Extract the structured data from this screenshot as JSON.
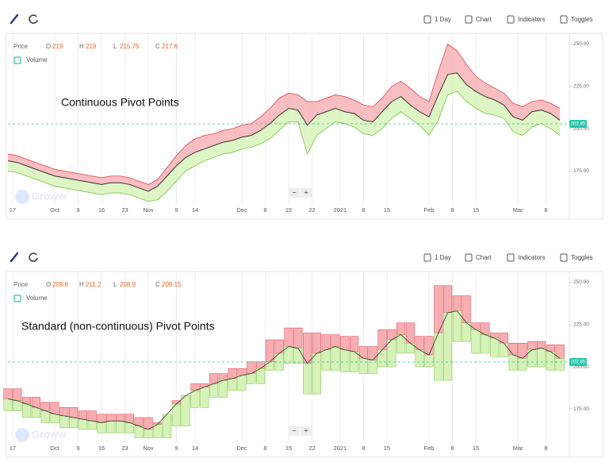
{
  "toolbars": [
    {
      "items": [
        "1 Day",
        "Chart",
        "Indicators",
        "Toggles"
      ],
      "zoom": [
        "−",
        "+"
      ]
    },
    {
      "items": [
        "1 Day",
        "Chart",
        "Indicators",
        "Toggles"
      ],
      "zoom": [
        "−",
        "+"
      ]
    }
  ],
  "chart_data": [
    {
      "type": "band",
      "title": "Continuous Pivot Points",
      "watermark": "Groww",
      "price_label": "Price",
      "volume_label": "Volume",
      "ohlc_labels": [
        "O",
        "H",
        "L",
        "C"
      ],
      "ohlc_values": [
        219,
        219,
        215.75,
        217.6
      ],
      "last_price": 202.85,
      "last_price_color": "#26c6a6",
      "xlim": [
        0,
        120
      ],
      "ylim": [
        155,
        254
      ],
      "grid": "x",
      "xticks": [
        {
          "value": 1,
          "label": "17"
        },
        {
          "value": 10,
          "label": "Oct"
        },
        {
          "value": 15,
          "label": "9"
        },
        {
          "value": 20,
          "label": "16"
        },
        {
          "value": 25,
          "label": "23"
        },
        {
          "value": 30,
          "label": "Nov"
        },
        {
          "value": 36,
          "label": "9"
        },
        {
          "value": 40,
          "label": "14"
        },
        {
          "value": 50,
          "label": "Dec"
        },
        {
          "value": 55,
          "label": "8"
        },
        {
          "value": 60,
          "label": "15"
        },
        {
          "value": 65,
          "label": "22"
        },
        {
          "value": 71,
          "label": "2021"
        },
        {
          "value": 76,
          "label": "8"
        },
        {
          "value": 81,
          "label": "15"
        },
        {
          "value": 90,
          "label": "Feb"
        },
        {
          "value": 95,
          "label": "8"
        },
        {
          "value": 100,
          "label": "15"
        },
        {
          "value": 109,
          "label": "Mar"
        },
        {
          "value": 115,
          "label": "8"
        }
      ],
      "yticks": [
        {
          "value": 175,
          "label": "175.00"
        },
        {
          "value": 200,
          "label": "200.00"
        },
        {
          "value": 225,
          "label": "225.00"
        },
        {
          "value": 250,
          "label": "250.00"
        }
      ],
      "x": [
        0,
        2,
        4,
        6,
        8,
        10,
        12,
        14,
        16,
        18,
        20,
        22,
        24,
        26,
        28,
        30,
        32,
        34,
        36,
        38,
        40,
        42,
        44,
        46,
        48,
        50,
        52,
        54,
        56,
        58,
        60,
        62,
        64,
        66,
        68,
        70,
        72,
        74,
        76,
        78,
        80,
        82,
        84,
        86,
        88,
        90,
        92,
        94,
        96,
        98,
        100,
        102,
        104,
        106,
        108,
        110,
        112,
        114,
        116,
        118
      ],
      "series": [
        {
          "color": "#e0404a",
          "fill": "#f6aeb2",
          "values": [
            185,
            184,
            182,
            180,
            178,
            176,
            175,
            174,
            173,
            172,
            171,
            172,
            172,
            171,
            169,
            167,
            170,
            177,
            184,
            190,
            194,
            196,
            197,
            199,
            200,
            202,
            203,
            207,
            212,
            218,
            221,
            220,
            216,
            216,
            218,
            220,
            219,
            217,
            214,
            213,
            218,
            225,
            228,
            224,
            219,
            216,
            234,
            250,
            246,
            238,
            231,
            227,
            224,
            221,
            215,
            213,
            216,
            217,
            215,
            212
          ]
        },
        {
          "color": "#333333",
          "values": [
            181,
            180,
            178,
            176,
            174,
            172,
            171,
            170,
            169,
            168,
            167,
            168,
            168,
            167,
            165,
            163,
            166,
            172,
            178,
            183,
            186,
            188,
            190,
            192,
            193,
            195,
            196,
            199,
            203,
            208,
            212,
            211,
            202,
            208,
            210,
            212,
            210,
            209,
            205,
            204,
            210,
            216,
            219,
            214,
            210,
            207,
            220,
            232,
            233,
            226,
            222,
            219,
            217,
            214,
            207,
            205,
            210,
            211,
            209,
            205
          ]
        },
        {
          "color": "#7cc243",
          "fill": "#d6f2b8",
          "values": [
            175,
            174,
            172,
            170,
            168,
            166,
            165,
            164,
            163,
            162,
            161,
            162,
            162,
            161,
            159,
            157,
            158,
            163,
            169,
            175,
            178,
            181,
            183,
            185,
            186,
            188,
            189,
            191,
            194,
            199,
            204,
            204,
            185,
            196,
            200,
            204,
            203,
            201,
            197,
            196,
            200,
            206,
            210,
            206,
            202,
            196,
            205,
            220,
            222,
            216,
            212,
            209,
            208,
            206,
            198,
            196,
            201,
            203,
            200,
            196
          ]
        }
      ]
    },
    {
      "type": "step_band",
      "title": "Standard (non-continuous) Pivot Points",
      "watermark": "Groww",
      "price_label": "Price",
      "volume_label": "Volume",
      "ohlc_labels": [
        "O",
        "H",
        "L",
        "C"
      ],
      "ohlc_values": [
        209.8,
        211.2,
        208.9,
        209.15
      ],
      "last_price": 202.85,
      "last_price_color": "#26c6a6",
      "xlim": [
        0,
        120
      ],
      "ylim": [
        155,
        254
      ],
      "grid": "x",
      "xticks": [
        {
          "value": 1,
          "label": "17"
        },
        {
          "value": 10,
          "label": "Oct"
        },
        {
          "value": 15,
          "label": "9"
        },
        {
          "value": 20,
          "label": "16"
        },
        {
          "value": 25,
          "label": "23"
        },
        {
          "value": 30,
          "label": "Nov"
        },
        {
          "value": 36,
          "label": "9"
        },
        {
          "value": 40,
          "label": "14"
        },
        {
          "value": 50,
          "label": "Dec"
        },
        {
          "value": 55,
          "label": "8"
        },
        {
          "value": 60,
          "label": "15"
        },
        {
          "value": 65,
          "label": "22"
        },
        {
          "value": 71,
          "label": "2021"
        },
        {
          "value": 76,
          "label": "8"
        },
        {
          "value": 81,
          "label": "15"
        },
        {
          "value": 90,
          "label": "Feb"
        },
        {
          "value": 95,
          "label": "8"
        },
        {
          "value": 100,
          "label": "15"
        },
        {
          "value": 109,
          "label": "Mar"
        },
        {
          "value": 115,
          "label": "8"
        }
      ],
      "yticks": [
        {
          "value": 175,
          "label": "175.00"
        },
        {
          "value": 200,
          "label": "200.00"
        },
        {
          "value": 225,
          "label": "225.00"
        },
        {
          "value": 250,
          "label": "250.00"
        }
      ],
      "x": [
        0,
        2,
        4,
        6,
        8,
        10,
        12,
        14,
        16,
        18,
        20,
        22,
        24,
        26,
        28,
        30,
        32,
        34,
        36,
        38,
        40,
        42,
        44,
        46,
        48,
        50,
        52,
        54,
        56,
        58,
        60,
        62,
        64,
        66,
        68,
        70,
        72,
        74,
        76,
        78,
        80,
        82,
        84,
        86,
        88,
        90,
        92,
        94,
        96,
        98,
        100,
        102,
        104,
        106,
        108,
        110,
        112,
        114,
        116,
        118
      ],
      "series": [
        {
          "color": "#e0404a",
          "fill": "#f6aeb2",
          "values": [
            187,
            187,
            182,
            182,
            179,
            179,
            176,
            176,
            174,
            174,
            172,
            172,
            172,
            172,
            170,
            170,
            167,
            167,
            180,
            180,
            190,
            190,
            196,
            196,
            199,
            199,
            203,
            203,
            216,
            216,
            223,
            223,
            220,
            220,
            219,
            219,
            218,
            218,
            212,
            212,
            222,
            222,
            226,
            226,
            218,
            218,
            248,
            248,
            242,
            242,
            226,
            226,
            220,
            220,
            214,
            214,
            215,
            215,
            213,
            213
          ]
        },
        {
          "color": "#333333",
          "values": [
            181,
            180,
            178,
            176,
            174,
            172,
            171,
            170,
            169,
            168,
            167,
            168,
            168,
            167,
            165,
            163,
            166,
            172,
            178,
            183,
            186,
            188,
            190,
            192,
            193,
            195,
            196,
            199,
            203,
            208,
            212,
            211,
            202,
            208,
            210,
            212,
            210,
            209,
            205,
            204,
            210,
            216,
            219,
            214,
            210,
            207,
            220,
            232,
            233,
            226,
            222,
            219,
            217,
            214,
            207,
            205,
            210,
            211,
            209,
            205
          ]
        },
        {
          "color": "#7cc243",
          "fill": "#d6f2b8",
          "values": [
            174,
            174,
            170,
            170,
            167,
            167,
            164,
            164,
            163,
            163,
            161,
            161,
            161,
            161,
            158,
            158,
            158,
            158,
            165,
            165,
            176,
            176,
            182,
            182,
            186,
            186,
            190,
            190,
            198,
            198,
            202,
            202,
            184,
            184,
            198,
            198,
            197,
            197,
            196,
            196,
            200,
            200,
            208,
            208,
            200,
            200,
            192,
            192,
            215,
            215,
            208,
            208,
            206,
            206,
            198,
            198,
            200,
            200,
            198,
            198
          ]
        }
      ]
    }
  ]
}
